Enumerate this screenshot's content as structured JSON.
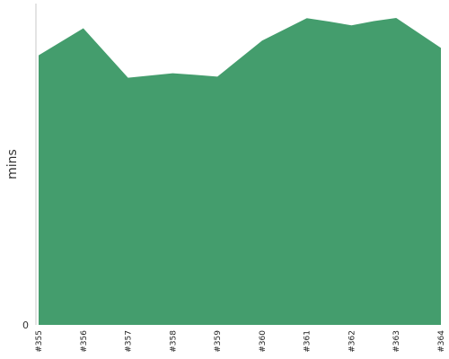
{
  "chart_data": {
    "type": "area",
    "ylabel": "mins",
    "xlabel": "",
    "title": "",
    "x": [
      "#355",
      "#356",
      "#357",
      "#358",
      "#359",
      "#360",
      "#361",
      "#362",
      "#363",
      "#364"
    ],
    "points": [
      {
        "x": 0.0,
        "y": 120.0
      },
      {
        "x": 1.0,
        "y": 132.0
      },
      {
        "x": 2.0,
        "y": 110.0
      },
      {
        "x": 3.0,
        "y": 112.0
      },
      {
        "x": 3.5,
        "y": 111.3
      },
      {
        "x": 4.0,
        "y": 110.5
      },
      {
        "x": 5.0,
        "y": 126.5
      },
      {
        "x": 6.0,
        "y": 136.5
      },
      {
        "x": 6.5,
        "y": 135.0
      },
      {
        "x": 7.0,
        "y": 133.3
      },
      {
        "x": 7.5,
        "y": 135.2
      },
      {
        "x": 8.0,
        "y": 136.6
      },
      {
        "x": 9.0,
        "y": 123.3
      }
    ],
    "yticks": [
      0
    ],
    "ylim": [
      0,
      143
    ],
    "colors": {
      "area": "#449d6d",
      "axis": "#c8c8c8"
    }
  }
}
